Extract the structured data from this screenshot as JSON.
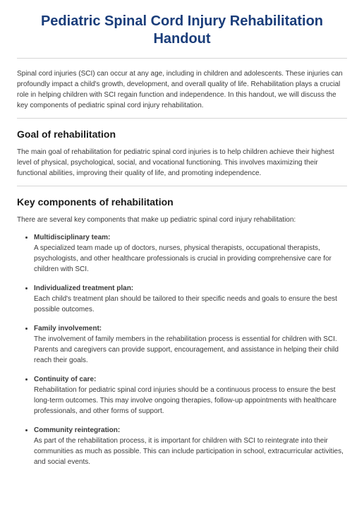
{
  "title": "Pediatric Spinal Cord Injury Rehabilitation Handout",
  "intro": "Spinal cord injuries (SCI) can occur at any age, including in children and adolescents. These injuries can profoundly impact a child's growth, development, and overall quality of life. Rehabilitation plays a crucial role in helping children with SCI regain function and independence. In this handout, we will discuss the key components of pediatric spinal cord injury rehabilitation.",
  "section1": {
    "heading": "Goal of rehabilitation",
    "body": "The main goal of rehabilitation for pediatric spinal cord injuries is to help children achieve their highest level of physical, psychological, social, and vocational functioning. This involves maximizing their functional abilities, improving their quality of life, and promoting independence."
  },
  "section2": {
    "heading": "Key components of rehabilitation",
    "lead": "There are several key components that make up pediatric spinal cord injury rehabilitation:",
    "items": [
      {
        "title": "Multidisciplinary team:",
        "desc": "A specialized team made up of doctors, nurses, physical therapists, occupational therapists, psychologists, and other healthcare professionals is crucial in providing comprehensive care for children with SCI."
      },
      {
        "title": "Individualized treatment plan:",
        "desc": "Each child's treatment plan should be tailored to their specific needs and goals to ensure the best possible outcomes."
      },
      {
        "title": "Family involvement:",
        "desc": "The involvement of family members in the rehabilitation process is essential for children with SCI. Parents and caregivers can provide support, encouragement, and assistance in helping their child reach their goals."
      },
      {
        "title": "Continuity of care:",
        "desc": "Rehabilitation for pediatric spinal cord injuries should be a continuous process to ensure the best long-term outcomes. This may involve ongoing therapies, follow-up appointments with healthcare professionals, and other forms of support."
      },
      {
        "title": "Community reintegration:",
        "desc": "As part of the rehabilitation process, it is important for children with SCI to reintegrate into their communities as much as possible. This can include participation in school, extracurricular activities, and social events."
      }
    ]
  },
  "colors": {
    "title_color": "#1a3d7a",
    "body_text": "#3a3a3a",
    "heading_text": "#1a1a1a",
    "separator": "#d6d6d6",
    "background": "#ffffff"
  },
  "typography": {
    "title_fontsize": 20,
    "section_fontsize": 14,
    "body_fontsize": 10,
    "font_family": "Arial"
  }
}
